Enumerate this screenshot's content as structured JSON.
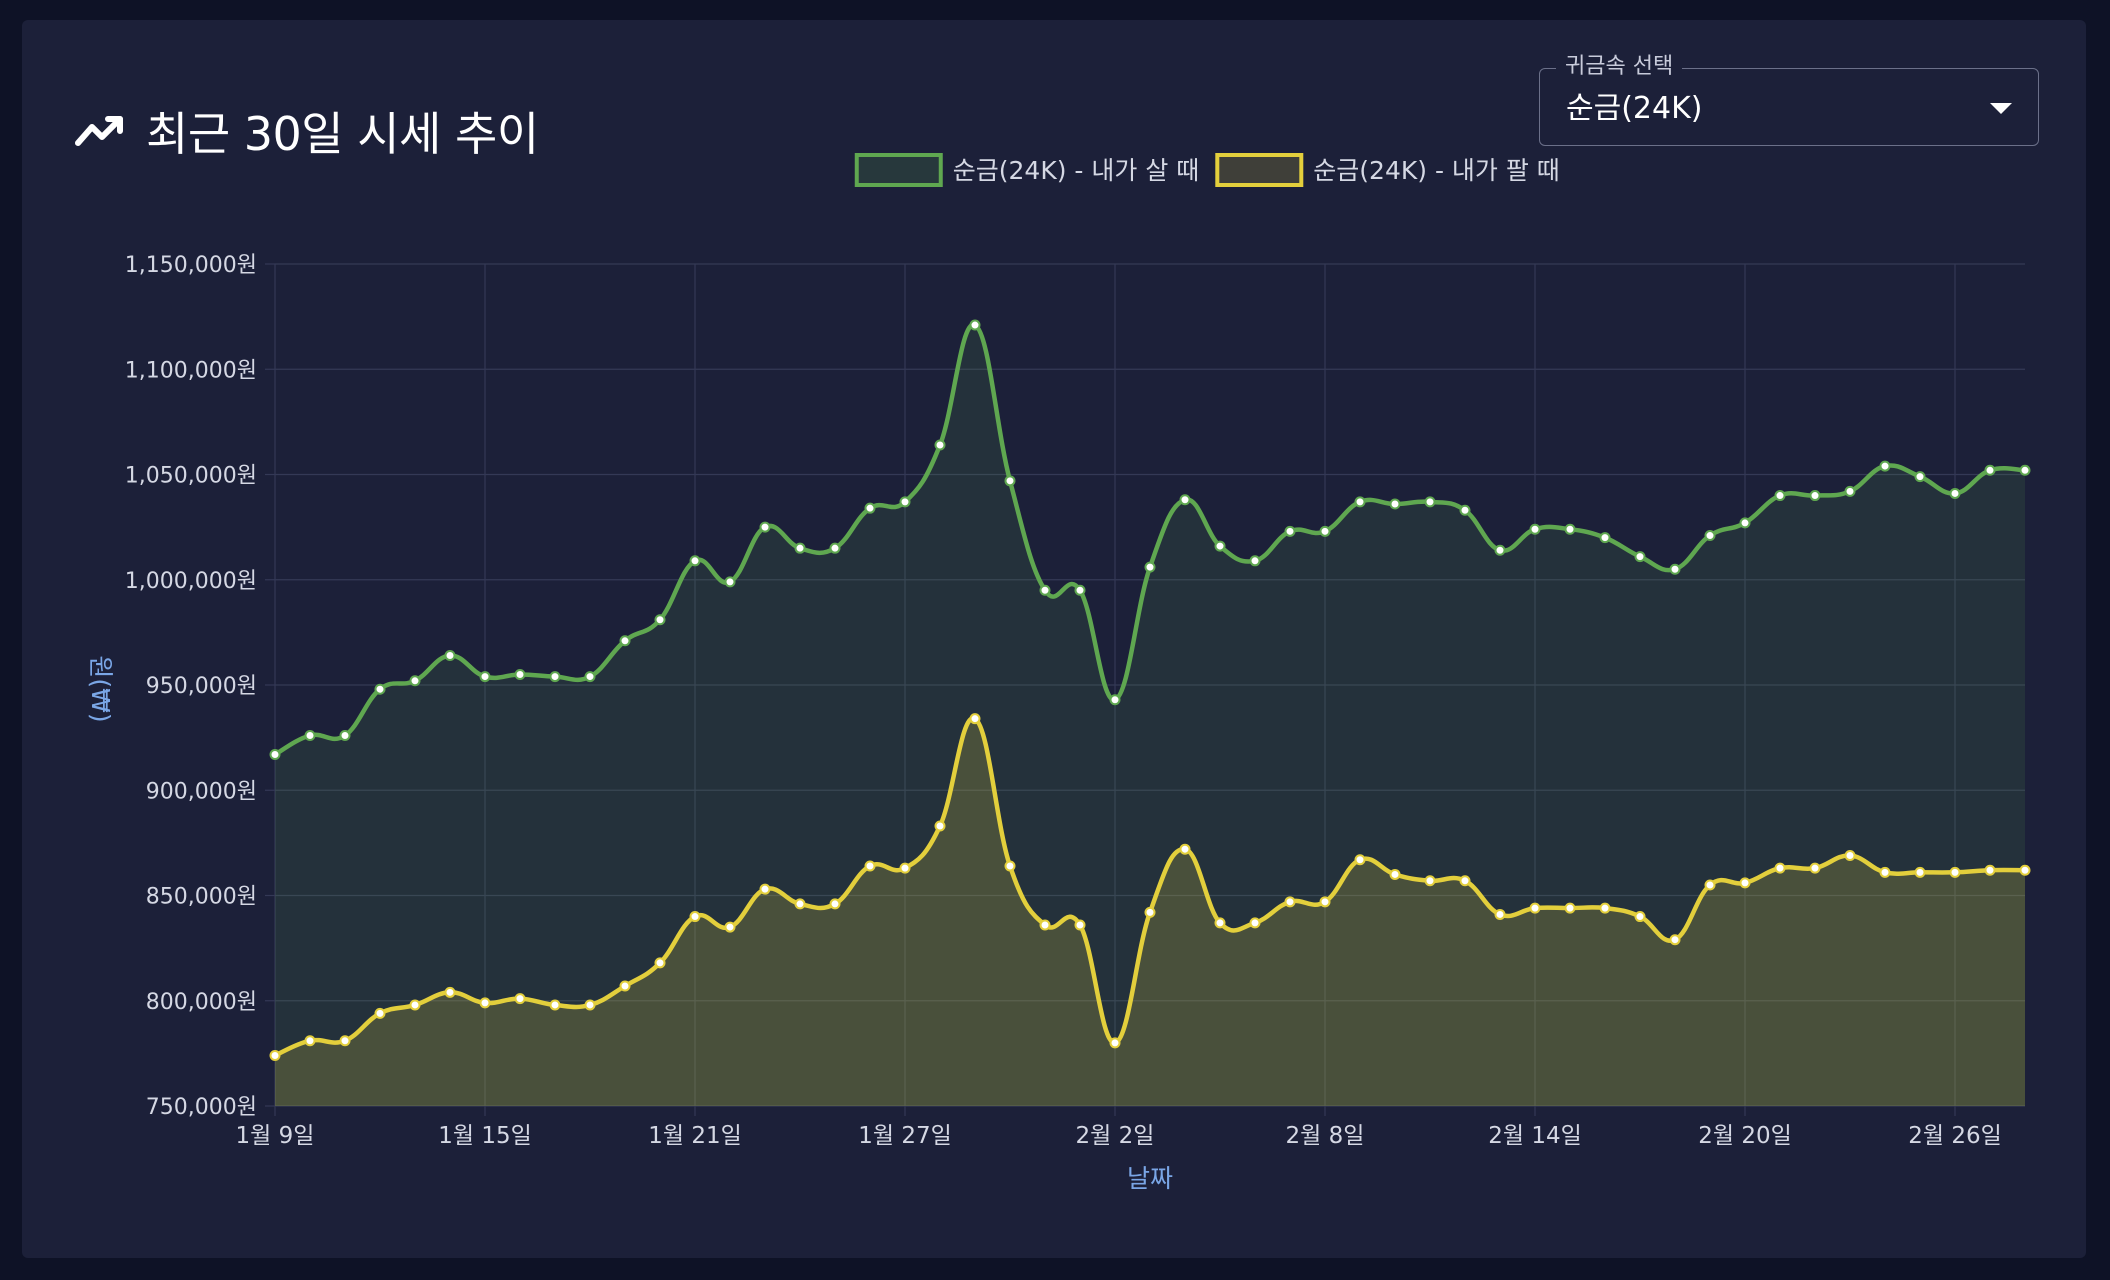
{
  "header": {
    "title": "최근 30일 시세 추이",
    "icon": "trending-up-icon"
  },
  "select": {
    "legend": "귀금속 선택",
    "value": "순금(24K)"
  },
  "colors": {
    "background": "#0e1226",
    "card": "#1c2039",
    "buy": "#5fa750",
    "sell": "#e3cf3c",
    "axis_title": "#7aa6e6",
    "tick": "#d5d8e4",
    "grid": "#343956"
  },
  "chart_data": {
    "type": "line",
    "xlabel": "날짜",
    "ylabel": "원(₩)",
    "ylim": [
      750000,
      1150000
    ],
    "y_ticks": [
      "750,000원",
      "800,000원",
      "850,000원",
      "900,000원",
      "950,000원",
      "1,000,000원",
      "1,050,000원",
      "1,100,000원",
      "1,150,000원"
    ],
    "x_ticks": [
      "1월 9일",
      "1월 15일",
      "1월 21일",
      "1월 27일",
      "2월 2일",
      "2월 8일",
      "2월 14일",
      "2월 20일",
      "2월 26일"
    ],
    "x_tick_positions": [
      0,
      6,
      12,
      18,
      24,
      30,
      36,
      42,
      48
    ],
    "point_count": 51,
    "fill": true,
    "grid": true,
    "legend_position": "top",
    "series": [
      {
        "name": "순금(24K) - 내가 살 때",
        "color": "#5fa750",
        "values": [
          917000,
          926000,
          926000,
          948000,
          952000,
          964000,
          954000,
          955000,
          954000,
          954000,
          971000,
          981000,
          1009000,
          999000,
          1025000,
          1015000,
          1015000,
          1034000,
          1037000,
          1064000,
          1121000,
          1047000,
          995000,
          995000,
          943000,
          1006000,
          1038000,
          1016000,
          1009000,
          1023000,
          1023000,
          1037000,
          1036000,
          1037000,
          1033000,
          1014000,
          1024000,
          1024000,
          1020000,
          1011000,
          1005000,
          1021000,
          1027000,
          1040000,
          1040000,
          1042000,
          1054000,
          1049000,
          1041000,
          1052000,
          1052000
        ]
      },
      {
        "name": "순금(24K) - 내가 팔 때",
        "color": "#e3cf3c",
        "values": [
          774000,
          781000,
          781000,
          794000,
          798000,
          804000,
          799000,
          801000,
          798000,
          798000,
          807000,
          818000,
          840000,
          835000,
          853000,
          846000,
          846000,
          864000,
          863000,
          883000,
          934000,
          864000,
          836000,
          836000,
          780000,
          842000,
          872000,
          837000,
          837000,
          847000,
          847000,
          867000,
          860000,
          857000,
          857000,
          841000,
          844000,
          844000,
          844000,
          840000,
          829000,
          855000,
          856000,
          863000,
          863000,
          869000,
          861000,
          861000,
          861000,
          862000,
          862000
        ]
      }
    ]
  }
}
